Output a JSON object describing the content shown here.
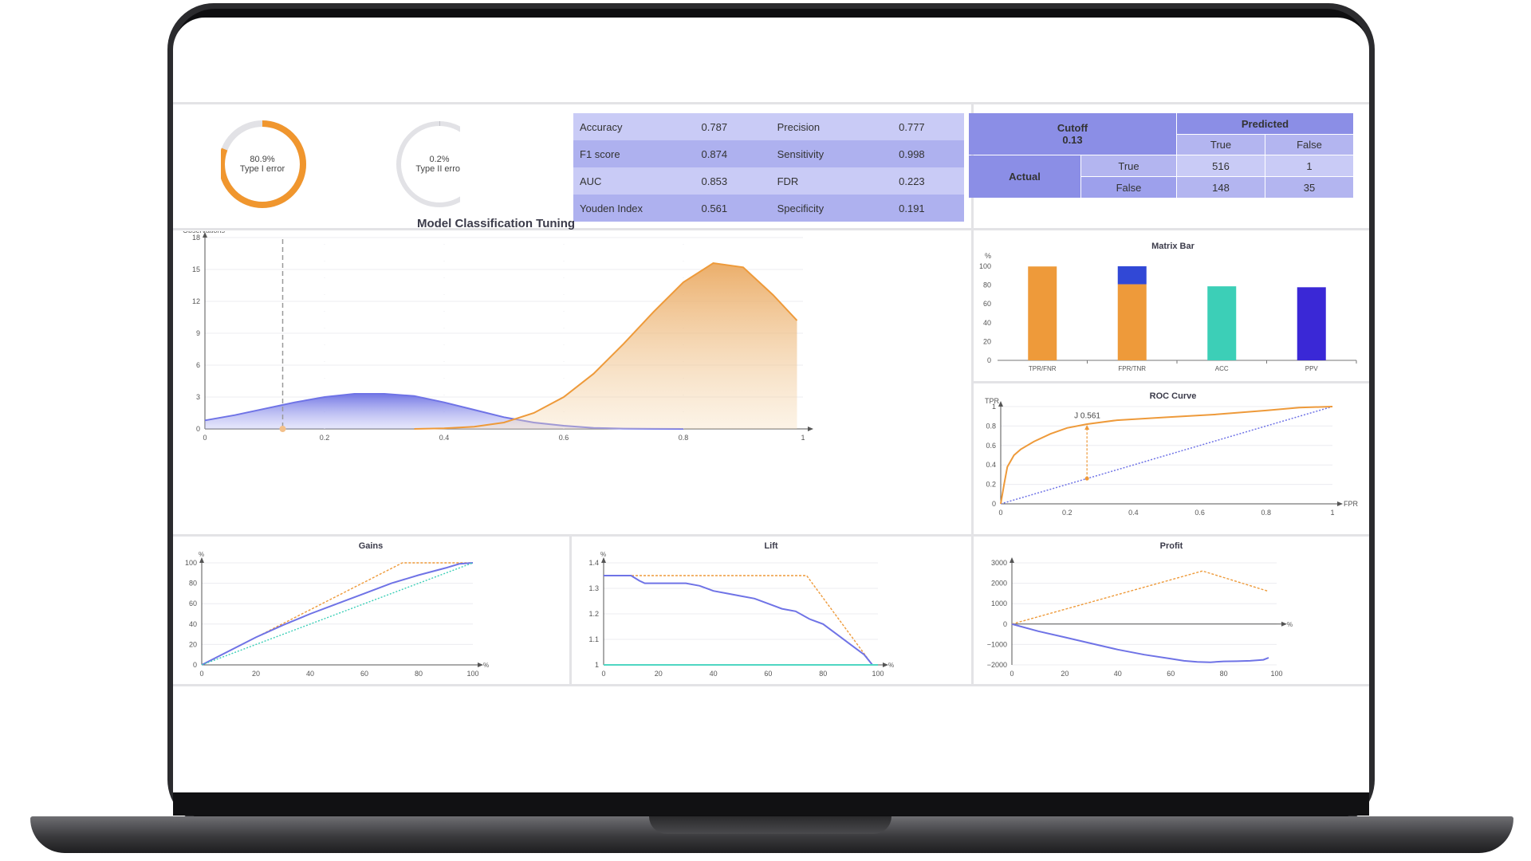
{
  "donuts": [
    {
      "value": "80.9%",
      "label": "Type I error",
      "fraction": 0.809,
      "color": "#f0962e"
    },
    {
      "value": "0.2%",
      "label": "Type II error",
      "fraction": 0.002,
      "color": "#b0b0b8"
    }
  ],
  "metrics": [
    {
      "name1": "Accuracy",
      "value1": "0.787",
      "name2": "Precision",
      "value2": "0.777"
    },
    {
      "name1": "F1 score",
      "value1": "0.874",
      "name2": "Sensitivity",
      "value2": "0.998"
    },
    {
      "name1": "AUC",
      "value1": "0.853",
      "name2": "FDR",
      "value2": "0.223"
    },
    {
      "name1": "Youden Index",
      "value1": "0.561",
      "name2": "Specificity",
      "value2": "0.191"
    }
  ],
  "confusion_matrix": {
    "cutoff_label": "Cutoff",
    "cutoff_value": "0.13",
    "predicted_label": "Predicted",
    "actual_label": "Actual",
    "true_label": "True",
    "false_label": "False",
    "tp": "516",
    "fn": "1",
    "fp": "148",
    "tn": "35"
  },
  "colors": {
    "orange": "#ee9a3a",
    "blue": "#6f73e6",
    "teal": "#3ccfb7",
    "indigo": "#3a28d6",
    "panel_purple": "#8b8ee6"
  },
  "chart_data": [
    {
      "type": "area",
      "title": "Model Classification Tuning",
      "ylabel": "Observations",
      "xlim": [
        0,
        1
      ],
      "ylim": [
        0,
        18
      ],
      "x_ticks": [
        "0",
        "0.2",
        "0.4",
        "0.6",
        "0.8",
        "1"
      ],
      "y_ticks": [
        "0",
        "3",
        "6",
        "9",
        "12",
        "15",
        "18"
      ],
      "cutoff": 0.13,
      "series": [
        {
          "x": [
            0,
            0.05,
            0.1,
            0.15,
            0.2,
            0.25,
            0.3,
            0.35,
            0.4,
            0.45,
            0.5,
            0.55,
            0.6,
            0.65,
            0.7,
            0.75,
            0.8
          ],
          "y": [
            0.8,
            1.3,
            1.9,
            2.5,
            3.0,
            3.3,
            3.3,
            3.1,
            2.5,
            1.8,
            1.1,
            0.6,
            0.3,
            0.1,
            0.03,
            0.01,
            0
          ]
        },
        {
          "x": [
            0.35,
            0.4,
            0.45,
            0.5,
            0.55,
            0.6,
            0.65,
            0.7,
            0.75,
            0.8,
            0.85,
            0.9,
            0.95,
            0.99
          ],
          "y": [
            0,
            0.05,
            0.2,
            0.6,
            1.5,
            3.0,
            5.2,
            8.0,
            11.0,
            13.8,
            15.6,
            15.2,
            12.6,
            10.2
          ]
        }
      ]
    },
    {
      "type": "bar",
      "title": "Matrix Bar",
      "ylabel": "%",
      "ylim": [
        0,
        100
      ],
      "y_ticks": [
        "0",
        "20",
        "40",
        "60",
        "80",
        "100"
      ],
      "categories": [
        "TPR/FNR",
        "FPR/TNR",
        "ACC",
        "PPV"
      ],
      "values": [
        99.8,
        80.9,
        78.7,
        77.7
      ],
      "stacked_top": [
        0.2,
        19.1,
        0,
        0
      ]
    },
    {
      "type": "line",
      "title": "ROC Curve",
      "xlabel": "FPR",
      "ylabel": "TPR",
      "xlim": [
        0,
        1
      ],
      "ylim": [
        0,
        1
      ],
      "x_ticks": [
        "0",
        "0.2",
        "0.4",
        "0.6",
        "0.8",
        "1"
      ],
      "y_ticks": [
        "0",
        "0.2",
        "0.4",
        "0.6",
        "0.8",
        "1"
      ],
      "annotation": "J 0.561",
      "annotation_fpr": 0.26,
      "series": [
        {
          "x": [
            0,
            0.01,
            0.02,
            0.04,
            0.06,
            0.1,
            0.15,
            0.2,
            0.26,
            0.35,
            0.5,
            0.65,
            0.8,
            0.9,
            1.0
          ],
          "y": [
            0,
            0.2,
            0.38,
            0.5,
            0.56,
            0.64,
            0.72,
            0.78,
            0.82,
            0.86,
            0.89,
            0.92,
            0.96,
            0.99,
            1.0
          ]
        },
        {
          "x": [
            0,
            1
          ],
          "y": [
            0,
            1
          ]
        }
      ]
    },
    {
      "type": "line",
      "title": "Gains",
      "xlabel": "%",
      "ylabel": "%",
      "xlim": [
        0,
        100
      ],
      "ylim": [
        0,
        100
      ],
      "x_ticks": [
        "0",
        "20",
        "40",
        "60",
        "80",
        "100"
      ],
      "y_ticks": [
        "0",
        "20",
        "40",
        "60",
        "80",
        "100"
      ],
      "series": [
        {
          "x": [
            0,
            74,
            100
          ],
          "y": [
            0,
            100,
            100
          ]
        },
        {
          "x": [
            0,
            20,
            30,
            40,
            50,
            60,
            70,
            80,
            90,
            95,
            100
          ],
          "y": [
            0,
            27,
            39,
            50,
            60,
            70,
            80,
            88,
            95,
            99,
            100
          ]
        },
        {
          "x": [
            0,
            100
          ],
          "y": [
            0,
            100
          ]
        }
      ]
    },
    {
      "type": "line",
      "title": "Lift",
      "xlabel": "%",
      "ylabel": "%",
      "xlim": [
        0,
        100
      ],
      "ylim": [
        1,
        1.4
      ],
      "x_ticks": [
        "0",
        "20",
        "40",
        "60",
        "80",
        "100"
      ],
      "y_ticks": [
        "1",
        "1.1",
        "1.2",
        "1.3",
        "1.4"
      ],
      "series": [
        {
          "x": [
            0,
            74,
            98
          ],
          "y": [
            1.35,
            1.35,
            1.0
          ]
        },
        {
          "x": [
            0,
            10,
            13,
            15,
            20,
            25,
            30,
            35,
            40,
            45,
            50,
            55,
            60,
            65,
            70,
            75,
            80,
            85,
            90,
            95,
            98
          ],
          "y": [
            1.35,
            1.35,
            1.33,
            1.32,
            1.32,
            1.32,
            1.32,
            1.31,
            1.29,
            1.28,
            1.27,
            1.26,
            1.24,
            1.22,
            1.21,
            1.18,
            1.16,
            1.12,
            1.08,
            1.04,
            1.0
          ]
        },
        {
          "x": [
            0,
            100
          ],
          "y": [
            1.0,
            1.0
          ]
        }
      ]
    },
    {
      "type": "line",
      "title": "Profit",
      "xlabel": "%",
      "xlim": [
        0,
        100
      ],
      "ylim": [
        -2000,
        3000
      ],
      "x_ticks": [
        "0",
        "20",
        "40",
        "60",
        "80",
        "100"
      ],
      "y_ticks": [
        "−2000",
        "−1000",
        "0",
        "1000",
        "2000",
        "3000"
      ],
      "series": [
        {
          "x": [
            0,
            72,
            97
          ],
          "y": [
            0,
            2600,
            1600
          ]
        },
        {
          "x": [
            0,
            10,
            20,
            30,
            40,
            50,
            60,
            65,
            70,
            75,
            80,
            85,
            90,
            95,
            97
          ],
          "y": [
            0,
            -350,
            -650,
            -950,
            -1250,
            -1500,
            -1700,
            -1800,
            -1850,
            -1870,
            -1830,
            -1820,
            -1800,
            -1750,
            -1650
          ]
        }
      ]
    }
  ]
}
